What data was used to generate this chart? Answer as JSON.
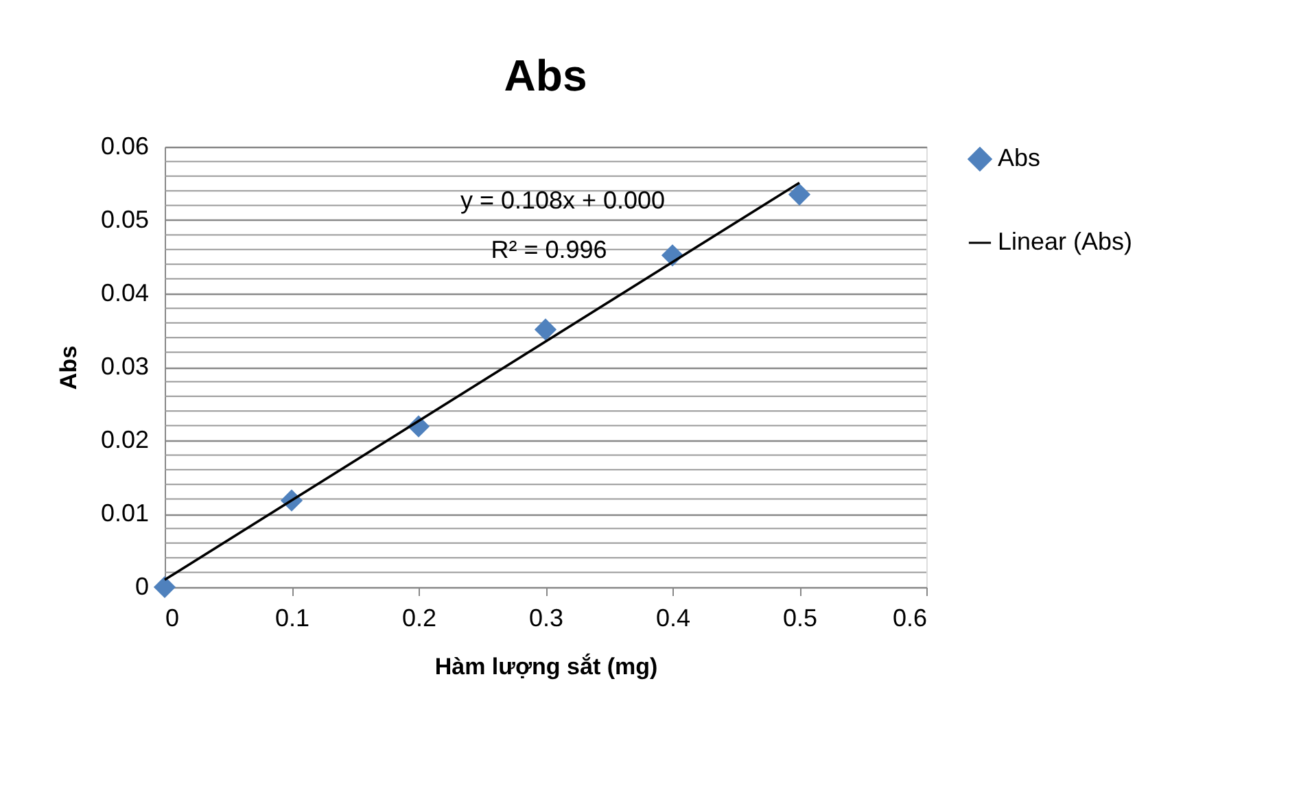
{
  "chart_data": {
    "type": "scatter",
    "title": "Abs",
    "xlabel": "Hàm lượng sắt (mg)",
    "ylabel": "Abs",
    "x": [
      0,
      0.1,
      0.2,
      0.3,
      0.4,
      0.5
    ],
    "series": [
      {
        "name": "Abs",
        "color": "#4f81bd",
        "type": "scatter",
        "marker": "diamond",
        "values": [
          0,
          0.0118,
          0.0219,
          0.0351,
          0.0452,
          0.0535
        ]
      },
      {
        "name": "Linear (Abs)",
        "color": "#000000",
        "type": "line",
        "marker": "none",
        "line_style": "solid",
        "x": [
          0,
          0.5
        ],
        "values": [
          0.001,
          0.0551
        ]
      }
    ],
    "xlim": [
      0,
      0.6
    ],
    "xticks": [
      0,
      0.1,
      0.2,
      0.3,
      0.4,
      0.5,
      0.6
    ],
    "ylim": [
      0,
      0.06
    ],
    "yticks": [
      0,
      {
        "value": 0.002,
        "label": null
      },
      {
        "value": 0.004,
        "label": null
      },
      {
        "value": 0.006,
        "label": null
      },
      {
        "value": 0.008,
        "label": null
      },
      0.01,
      {
        "value": 0.012,
        "label": null
      },
      {
        "value": 0.014,
        "label": null
      },
      {
        "value": 0.016,
        "label": null
      },
      {
        "value": 0.018,
        "label": null
      },
      0.02,
      {
        "value": 0.022,
        "label": null
      },
      {
        "value": 0.024,
        "label": null
      },
      {
        "value": 0.026,
        "label": null
      },
      {
        "value": 0.028,
        "label": null
      },
      0.03,
      {
        "value": 0.032,
        "label": null
      },
      {
        "value": 0.034,
        "label": null
      },
      {
        "value": 0.036,
        "label": null
      },
      {
        "value": 0.038,
        "label": null
      },
      0.04,
      {
        "value": 0.042,
        "label": null
      },
      {
        "value": 0.044,
        "label": null
      },
      {
        "value": 0.046,
        "label": null
      },
      {
        "value": 0.048,
        "label": null
      },
      0.05,
      {
        "value": 0.052,
        "label": null
      },
      {
        "value": 0.054,
        "label": null
      },
      {
        "value": 0.056,
        "label": null
      },
      {
        "value": 0.058,
        "label": null
      },
      0.06
    ],
    "grid": "y",
    "legend": "right",
    "annotations": [
      "y = 0.108x + 0.000",
      "R² = 0.996"
    ]
  }
}
